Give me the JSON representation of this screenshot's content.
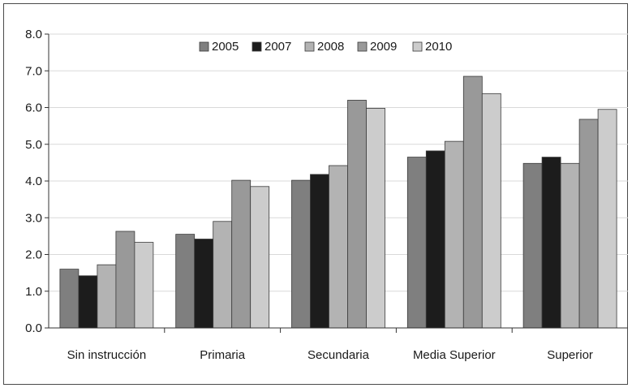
{
  "chart_data": {
    "type": "bar",
    "title": "",
    "xlabel": "",
    "ylabel": "",
    "ylim": [
      0,
      8
    ],
    "yticks": [
      "0.0",
      "1.0",
      "2.0",
      "3.0",
      "4.0",
      "5.0",
      "6.0",
      "7.0",
      "8.0"
    ],
    "grid": true,
    "legend_position": "top-center",
    "categories": [
      "Sin instrucción",
      "Primaria",
      "Secundaria",
      "Media Superior",
      "Superior"
    ],
    "series": [
      {
        "name": "2005",
        "color": "#7f7f7f",
        "values": [
          1.6,
          2.55,
          4.02,
          4.65,
          4.48
        ]
      },
      {
        "name": "2007",
        "color": "#1c1c1c",
        "values": [
          1.42,
          2.42,
          4.18,
          4.82,
          4.65
        ]
      },
      {
        "name": "2008",
        "color": "#b3b3b3",
        "values": [
          1.72,
          2.9,
          4.42,
          5.08,
          4.48
        ]
      },
      {
        "name": "2009",
        "color": "#999999",
        "values": [
          2.63,
          4.02,
          6.2,
          6.85,
          5.68
        ]
      },
      {
        "name": "2010",
        "color": "#cccccc",
        "values": [
          2.33,
          3.85,
          5.98,
          6.38,
          5.95
        ]
      }
    ]
  }
}
